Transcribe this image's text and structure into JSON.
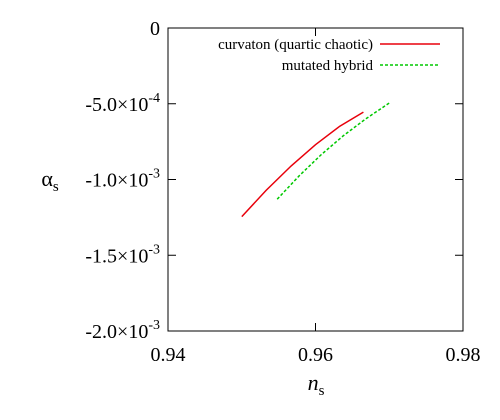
{
  "chart_data": {
    "type": "line",
    "xlabel": {
      "main": "n",
      "sub": "s"
    },
    "ylabel": {
      "main": "α",
      "sub": "s"
    },
    "xlim": [
      0.94,
      0.98
    ],
    "ylim": [
      -0.002,
      0
    ],
    "x_ticks": [
      {
        "value": 0.94,
        "label": "0.94"
      },
      {
        "value": 0.96,
        "label": "0.96"
      },
      {
        "value": 0.98,
        "label": "0.98"
      }
    ],
    "y_ticks": [
      {
        "value": 0,
        "label": "0"
      },
      {
        "value": -0.0005,
        "label": "-5.0×10",
        "exp": "-4"
      },
      {
        "value": -0.001,
        "label": "-1.0×10",
        "exp": "-3"
      },
      {
        "value": -0.0015,
        "label": "-1.5×10",
        "exp": "-3"
      },
      {
        "value": -0.002,
        "label": "-2.0×10",
        "exp": "-3"
      }
    ],
    "legend_position": "top-right",
    "grid": false,
    "series": [
      {
        "name": "curvaton (quartic chaotic)",
        "color": "#e8000b",
        "style": "solid",
        "x": [
          0.95,
          0.9533,
          0.9567,
          0.96,
          0.9633,
          0.9665
        ],
        "y": [
          -0.001245,
          -0.001072,
          -0.00091,
          -0.00077,
          -0.000648,
          -0.000555
        ]
      },
      {
        "name": "mutated hybrid",
        "color": "#00c800",
        "style": "dashed",
        "x": [
          0.9548,
          0.9578,
          0.9608,
          0.9638,
          0.9668,
          0.97
        ],
        "y": [
          -0.00113,
          -0.000975,
          -0.000835,
          -0.00071,
          -0.0006,
          -0.000495
        ]
      }
    ]
  }
}
